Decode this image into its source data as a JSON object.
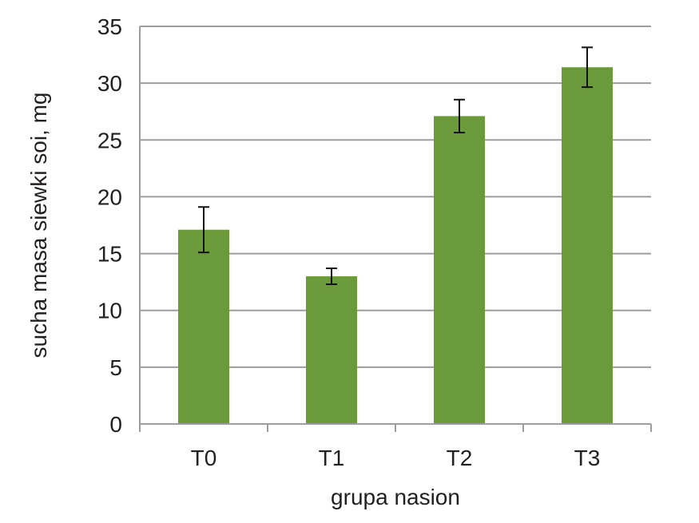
{
  "chart_data": {
    "type": "bar",
    "title": "",
    "xlabel": "grupa nasion",
    "ylabel": "sucha masa siewki soi, mg",
    "categories": [
      "T0",
      "T1",
      "T2",
      "T3"
    ],
    "values": [
      17.1,
      13.0,
      27.1,
      31.4
    ],
    "error": [
      2.0,
      0.7,
      1.45,
      1.75
    ],
    "ylim": [
      0,
      35
    ],
    "yticks": [
      "0",
      "5",
      "10",
      "15",
      "20",
      "25",
      "30",
      "35"
    ],
    "ytick_values": [
      0,
      5,
      10,
      15,
      20,
      25,
      30,
      35
    ],
    "grid": true,
    "legend": "none",
    "bar_color": "#6a9a3a",
    "grid_color": "#9d9d9d",
    "error_color": "#111111"
  }
}
